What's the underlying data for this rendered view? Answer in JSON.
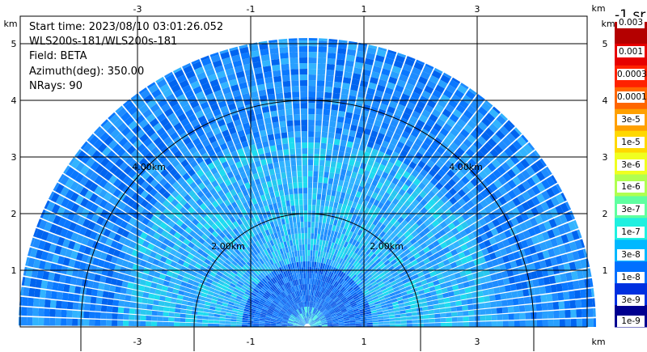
{
  "info": {
    "start_time": "Start time: 2023/08/10 03:01:26.052",
    "instrument": "WLS200s-181/WLS200s-181",
    "field": "Field: BETA",
    "azimuth": "Azimuth(deg): 350.00",
    "nrays": "NRays: 90"
  },
  "axes": {
    "x_ticks": [
      "-3",
      "-1",
      "1",
      "3"
    ],
    "y_ticks": [
      "1",
      "2",
      "3",
      "4",
      "5"
    ],
    "unit": "km"
  },
  "ring_labels": [
    "2.00km",
    "4.00km"
  ],
  "colorbar": {
    "title": "-1 sr",
    "labels": [
      "0.003",
      "0.001",
      "0.0003",
      "0.0001",
      "3e-5",
      "1e-5",
      "3e-6",
      "1e-6",
      "3e-7",
      "1e-7",
      "3e-8",
      "1e-8",
      "3e-9",
      "1e-9"
    ],
    "colors": [
      "#b40000",
      "#e60000",
      "#ff2200",
      "#ff6600",
      "#ffa000",
      "#ffd800",
      "#f0ff20",
      "#b0ff50",
      "#60ffa0",
      "#20f0e0",
      "#00b8ff",
      "#0070ff",
      "#0030e0",
      "#000090"
    ]
  },
  "chart_data": {
    "type": "heatmap",
    "title": "",
    "xlabel": "km",
    "ylabel": "km",
    "xlim": [
      -3.95,
      4.2
    ],
    "ylim": [
      0,
      5.35
    ],
    "rings_km": [
      2,
      4
    ],
    "max_range_km": 5.1,
    "nrays": 90,
    "field": "BETA"
  }
}
